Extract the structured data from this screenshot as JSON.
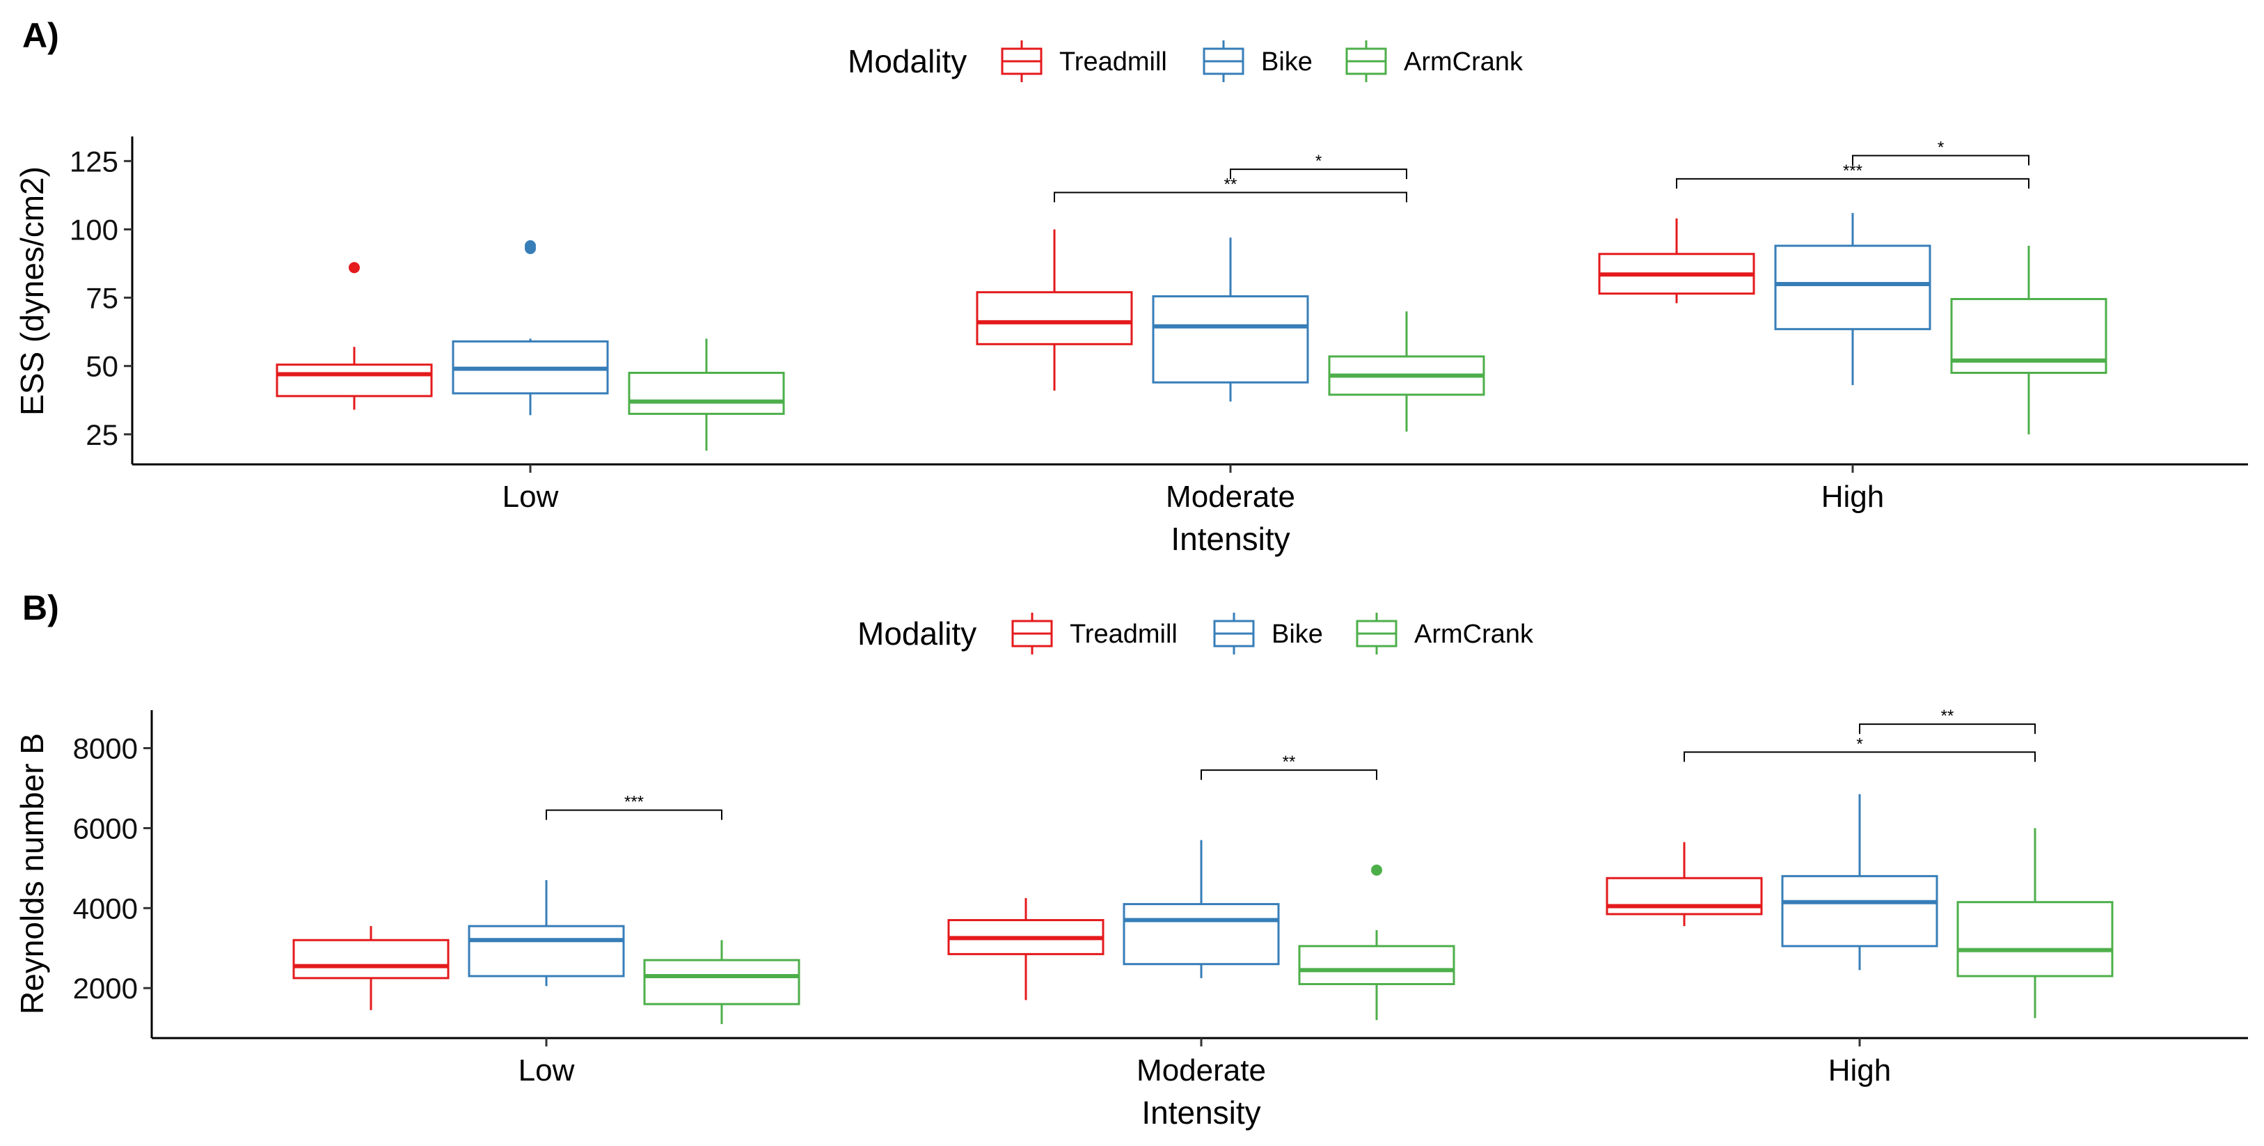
{
  "figure": {
    "colors": {
      "Treadmill": "#E41A1C",
      "Bike": "#377EB8",
      "ArmCrank": "#4DAF4A"
    },
    "legend": {
      "title": "Modality",
      "items": [
        "Treadmill",
        "Bike",
        "ArmCrank"
      ]
    }
  },
  "chart_data": [
    {
      "type": "box",
      "panel_label": "A)",
      "xlabel": "Intensity",
      "ylabel": "ESS (dynes/cm2)",
      "categories": [
        "Low",
        "Moderate",
        "High"
      ],
      "ylim": [
        14,
        134
      ],
      "yticks": [
        25,
        50,
        75,
        100,
        125
      ],
      "grid": false,
      "legend_position": "top",
      "series": [
        {
          "name": "Treadmill",
          "boxes": [
            {
              "min": 34,
              "q1": 39,
              "median": 47,
              "q3": 50.5,
              "max": 57,
              "outliers": [
                86
              ]
            },
            {
              "min": 41,
              "q1": 58,
              "median": 66,
              "q3": 77,
              "max": 100,
              "outliers": []
            },
            {
              "min": 73,
              "q1": 76.5,
              "median": 83.5,
              "q3": 91,
              "max": 104,
              "outliers": []
            }
          ]
        },
        {
          "name": "Bike",
          "boxes": [
            {
              "min": 32,
              "q1": 40,
              "median": 49,
              "q3": 59,
              "max": 60,
              "outliers": [
                93,
                94
              ]
            },
            {
              "min": 37,
              "q1": 44,
              "median": 64.5,
              "q3": 75.5,
              "max": 97,
              "outliers": []
            },
            {
              "min": 43,
              "q1": 63.5,
              "median": 80,
              "q3": 94,
              "max": 106,
              "outliers": []
            }
          ]
        },
        {
          "name": "ArmCrank",
          "boxes": [
            {
              "min": 19,
              "q1": 32.5,
              "median": 37,
              "q3": 47.5,
              "max": 60,
              "outliers": []
            },
            {
              "min": 26,
              "q1": 39.5,
              "median": 46.5,
              "q3": 53.5,
              "max": 70,
              "outliers": []
            },
            {
              "min": 25,
              "q1": 47.5,
              "median": 52,
              "q3": 74.5,
              "max": 94,
              "outliers": []
            }
          ]
        }
      ],
      "significance": [
        {
          "category": "Moderate",
          "from": "Bike",
          "to": "ArmCrank",
          "y": 122,
          "label": "*"
        },
        {
          "category": "Moderate",
          "from": "Treadmill",
          "to": "ArmCrank",
          "y": 113.5,
          "label": "**"
        },
        {
          "category": "High",
          "from": "Bike",
          "to": "ArmCrank",
          "y": 127,
          "label": "*"
        },
        {
          "category": "High",
          "from": "Treadmill",
          "to": "ArmCrank",
          "y": 118.5,
          "label": "***"
        }
      ]
    },
    {
      "type": "box",
      "panel_label": "B)",
      "xlabel": "Intensity",
      "ylabel": "Reynolds number B",
      "categories": [
        "Low",
        "Moderate",
        "High"
      ],
      "ylim": [
        750,
        8950
      ],
      "yticks": [
        2000,
        4000,
        6000,
        8000
      ],
      "grid": false,
      "legend_position": "top",
      "series": [
        {
          "name": "Treadmill",
          "boxes": [
            {
              "min": 1450,
              "q1": 2250,
              "median": 2550,
              "q3": 3200,
              "max": 3550,
              "outliers": []
            },
            {
              "min": 1700,
              "q1": 2850,
              "median": 3250,
              "q3": 3700,
              "max": 4250,
              "outliers": []
            },
            {
              "min": 3550,
              "q1": 3850,
              "median": 4050,
              "q3": 4750,
              "max": 5650,
              "outliers": []
            }
          ]
        },
        {
          "name": "Bike",
          "boxes": [
            {
              "min": 2050,
              "q1": 2300,
              "median": 3200,
              "q3": 3550,
              "max": 4700,
              "outliers": []
            },
            {
              "min": 2250,
              "q1": 2600,
              "median": 3700,
              "q3": 4100,
              "max": 5700,
              "outliers": []
            },
            {
              "min": 2450,
              "q1": 3050,
              "median": 4150,
              "q3": 4800,
              "max": 6850,
              "outliers": []
            }
          ]
        },
        {
          "name": "ArmCrank",
          "boxes": [
            {
              "min": 1100,
              "q1": 1600,
              "median": 2300,
              "q3": 2700,
              "max": 3200,
              "outliers": []
            },
            {
              "min": 1200,
              "q1": 2100,
              "median": 2450,
              "q3": 3050,
              "max": 3450,
              "outliers": [
                4950
              ]
            },
            {
              "min": 1250,
              "q1": 2300,
              "median": 2950,
              "q3": 4150,
              "max": 6000,
              "outliers": []
            }
          ]
        }
      ],
      "significance": [
        {
          "category": "Low",
          "from": "Bike",
          "to": "ArmCrank",
          "y": 6450,
          "label": "***"
        },
        {
          "category": "Moderate",
          "from": "Bike",
          "to": "ArmCrank",
          "y": 7450,
          "label": "**"
        },
        {
          "category": "High",
          "from": "Bike",
          "to": "ArmCrank",
          "y": 8600,
          "label": "**"
        },
        {
          "category": "High",
          "from": "Treadmill",
          "to": "ArmCrank",
          "y": 7900,
          "label": "*"
        }
      ]
    }
  ]
}
